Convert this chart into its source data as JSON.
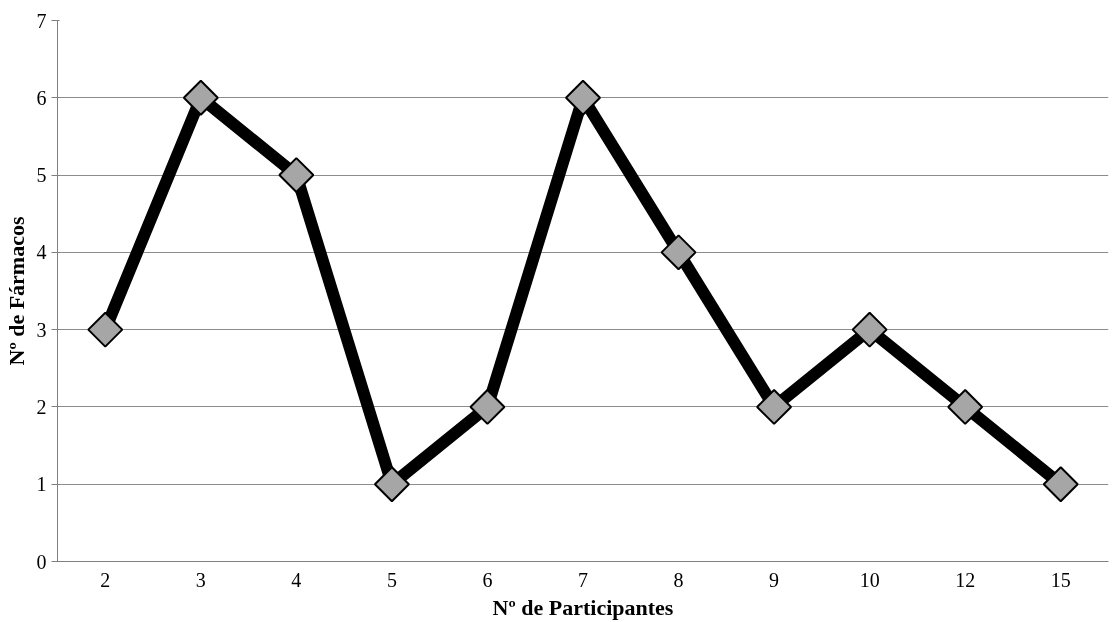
{
  "chart_data": {
    "type": "line",
    "xlabel": "Nº de Participantes",
    "ylabel": "Nº de Fármacos",
    "categories": [
      "2",
      "3",
      "4",
      "5",
      "6",
      "7",
      "8",
      "9",
      "10",
      "12",
      "15"
    ],
    "series": [
      {
        "color": "#000000",
        "values": [
          3,
          6,
          5,
          1,
          2,
          6,
          4,
          2,
          3,
          2,
          1
        ]
      }
    ],
    "ylim": [
      0,
      7
    ],
    "yticks": [
      0,
      1,
      2,
      3,
      4,
      5,
      6,
      7
    ],
    "grid": "y",
    "marker": "diamond",
    "line_style": "solid"
  }
}
